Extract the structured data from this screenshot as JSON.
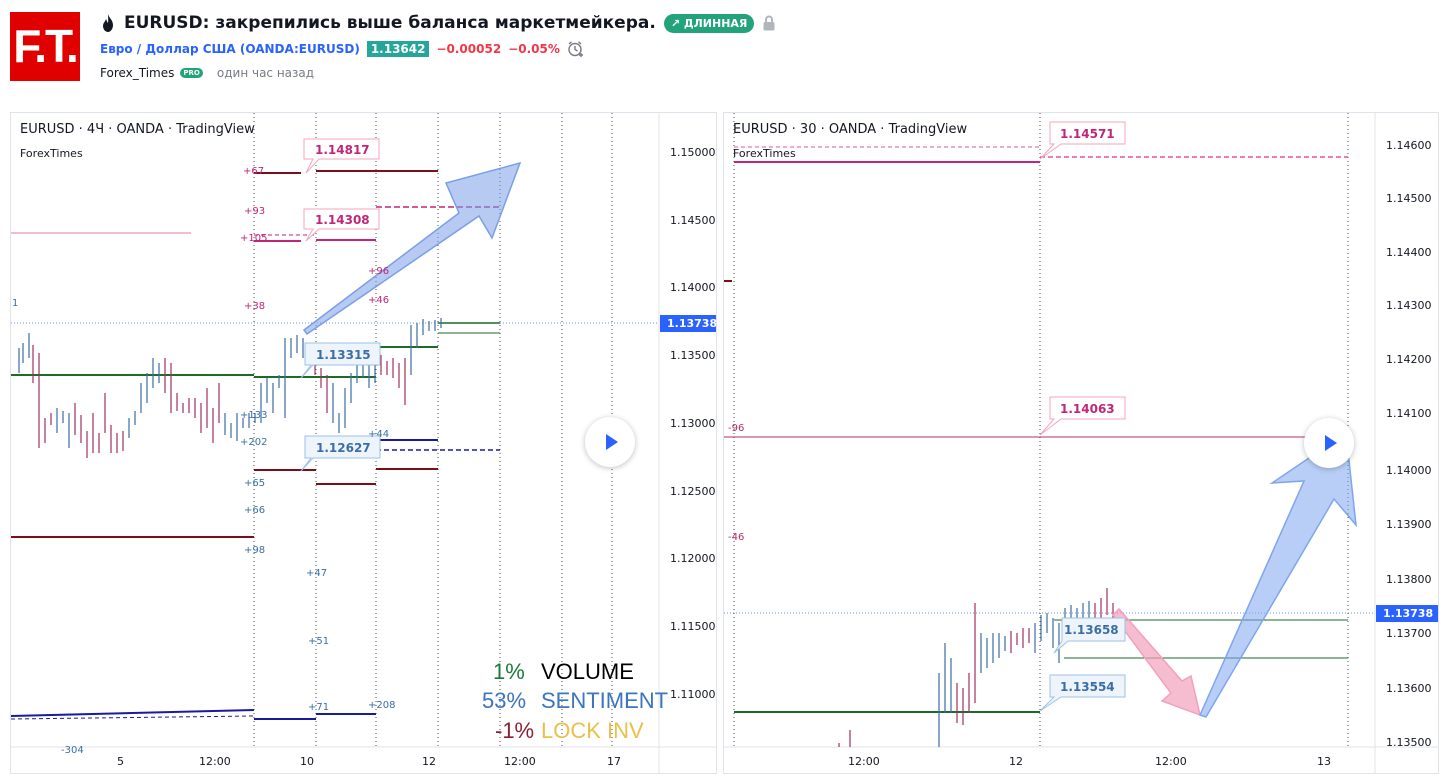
{
  "header": {
    "logo_text": "F.T.",
    "title": "EURUSD: закрепились выше баланса маркетмейкера.",
    "badge_long": "↗ ДЛИННАЯ",
    "symbol_link": "Евро / Доллар США (OANDA:EURUSD)",
    "last_price": "1.13642",
    "change_abs": "−0.00052",
    "change_pct": "−0.05%",
    "author": "Forex_Times",
    "author_badge": "PRO",
    "time_ago": "один час назад",
    "colors": {
      "brand": "#e00000",
      "long": "#22a37a",
      "link": "#2962ff",
      "down": "#f23645"
    }
  },
  "left_chart": {
    "legend": "EURUSD · 4Ч · OANDA · TradingView",
    "study": "ForexTimes",
    "price_axis": [
      "1.15000",
      "1.14500",
      "1.14000",
      "1.13500",
      "1.13000",
      "1.12500",
      "1.12000",
      "1.11500",
      "1.11000"
    ],
    "last_price_tag": "1.13738",
    "time_axis": [
      "5",
      "12:00",
      "10",
      "12",
      "12:00",
      "17"
    ],
    "callouts": [
      "1.14817",
      "1.14308",
      "1.13315",
      "1.12627"
    ],
    "small_labels": [
      "+67",
      "+93",
      "+105",
      "+38",
      "+96",
      "+46",
      "+133",
      "+202",
      "+44",
      "+65",
      "+66",
      "+98",
      "+47",
      "+51",
      "+71",
      "+208",
      "1",
      "-304"
    ],
    "stats": [
      {
        "pct": "1%",
        "label": "VOLUME",
        "pct_color": "#1b7a3a",
        "label_color": "#000000"
      },
      {
        "pct": "53%",
        "label": "SENTIMENT",
        "pct_color": "#3b74c0",
        "label_color": "#3b74c0"
      },
      {
        "pct": "-1%",
        "label": "LOCK INV",
        "pct_color": "#8b1f35",
        "label_color": "#e8c14a"
      }
    ]
  },
  "right_chart": {
    "legend": "EURUSD · 30 · OANDA · TradingView",
    "study": "ForexTimes",
    "price_axis": [
      "1.14600",
      "1.14500",
      "1.14400",
      "1.14300",
      "1.14200",
      "1.14100",
      "1.14000",
      "1.13900",
      "1.13800",
      "1.13700",
      "1.13600",
      "1.13500"
    ],
    "last_price_tag": "1.13738",
    "time_axis": [
      "12:00",
      "12",
      "12:00",
      "13"
    ],
    "callouts": [
      "1.14571",
      "1.14063",
      "1.13658",
      "1.13554"
    ],
    "small_labels": [
      "-96",
      "-46"
    ]
  }
}
